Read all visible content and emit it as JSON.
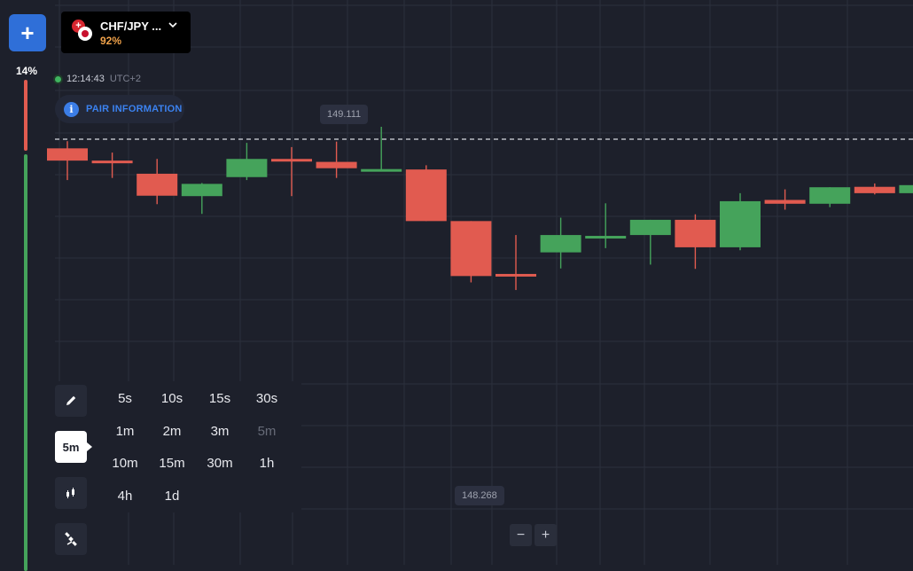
{
  "sidebar": {
    "add_label": "+",
    "percent_label": "14%",
    "sentiment": {
      "down_share": 0.14,
      "up_share": 0.86
    }
  },
  "asset": {
    "name": "CHF/JPY ...",
    "payout": "92%",
    "flag_icons": [
      "switzerland-flag-icon",
      "japan-flag-icon"
    ]
  },
  "clock": {
    "time": "12:14:43",
    "timezone": "UTC+2"
  },
  "pair_info": {
    "label": "PAIR INFORMATION"
  },
  "price_tags": {
    "high": "149.111",
    "low": "148.268"
  },
  "current_price_line": "dashed",
  "tools": [
    {
      "name": "pencil-icon"
    },
    {
      "label": "5m"
    },
    {
      "name": "candlestick-chart-icon"
    },
    {
      "name": "satellite-icon"
    }
  ],
  "timeframes": [
    {
      "label": "5s",
      "enabled": true
    },
    {
      "label": "10s",
      "enabled": true
    },
    {
      "label": "15s",
      "enabled": true
    },
    {
      "label": "30s",
      "enabled": true
    },
    {
      "label": "1m",
      "enabled": true
    },
    {
      "label": "2m",
      "enabled": true
    },
    {
      "label": "3m",
      "enabled": true
    },
    {
      "label": "5m",
      "enabled": false
    },
    {
      "label": "10m",
      "enabled": true
    },
    {
      "label": "15m",
      "enabled": true
    },
    {
      "label": "30m",
      "enabled": true
    },
    {
      "label": "1h",
      "enabled": true
    },
    {
      "label": "4h",
      "enabled": true
    },
    {
      "label": "1d",
      "enabled": true
    }
  ],
  "zoom": {
    "out_label": "−",
    "in_label": "+"
  },
  "colors": {
    "background": "#1d202b",
    "grid": "#2c303c",
    "up": "#45a35b",
    "down": "#e15b50",
    "accent": "#2f6fd8"
  },
  "chart_data": {
    "type": "candlestick",
    "ylim": [
      148.268,
      149.111
    ],
    "candles": [
      {
        "open": 149.06,
        "close": 149.031,
        "high": 149.077,
        "low": 148.985
      },
      {
        "open": 149.031,
        "close": 149.029,
        "high": 149.05,
        "low": 148.99
      },
      {
        "open": 149.0,
        "close": 148.948,
        "high": 149.035,
        "low": 148.928
      },
      {
        "open": 148.947,
        "close": 148.976,
        "high": 148.978,
        "low": 148.905
      },
      {
        "open": 148.992,
        "close": 149.035,
        "high": 149.073,
        "low": 148.985
      },
      {
        "open": 149.035,
        "close": 149.032,
        "high": 149.063,
        "low": 148.947
      },
      {
        "open": 149.028,
        "close": 149.013,
        "high": 149.076,
        "low": 148.99
      },
      {
        "open": 149.009,
        "close": 149.011,
        "high": 149.111,
        "low": 149.005
      },
      {
        "open": 149.01,
        "close": 148.888,
        "high": 149.02,
        "low": 148.888
      },
      {
        "open": 148.888,
        "close": 148.758,
        "high": 148.888,
        "low": 148.743
      },
      {
        "open": 148.763,
        "close": 148.757,
        "high": 148.855,
        "low": 148.725
      },
      {
        "open": 148.814,
        "close": 148.855,
        "high": 148.896,
        "low": 148.776
      },
      {
        "open": 148.853,
        "close": 148.853,
        "high": 148.93,
        "low": 148.824
      },
      {
        "open": 148.855,
        "close": 148.891,
        "high": 148.891,
        "low": 148.785
      },
      {
        "open": 148.891,
        "close": 148.826,
        "high": 148.904,
        "low": 148.775
      },
      {
        "open": 148.826,
        "close": 148.935,
        "high": 148.954,
        "low": 148.819
      },
      {
        "open": 148.938,
        "close": 148.929,
        "high": 148.963,
        "low": 148.915
      },
      {
        "open": 148.929,
        "close": 148.968,
        "high": 148.968,
        "low": 148.921
      },
      {
        "open": 148.969,
        "close": 148.954,
        "high": 148.977,
        "low": 148.951
      },
      {
        "open": 148.954,
        "close": 148.973,
        "high": 148.973,
        "low": 148.954
      }
    ]
  }
}
